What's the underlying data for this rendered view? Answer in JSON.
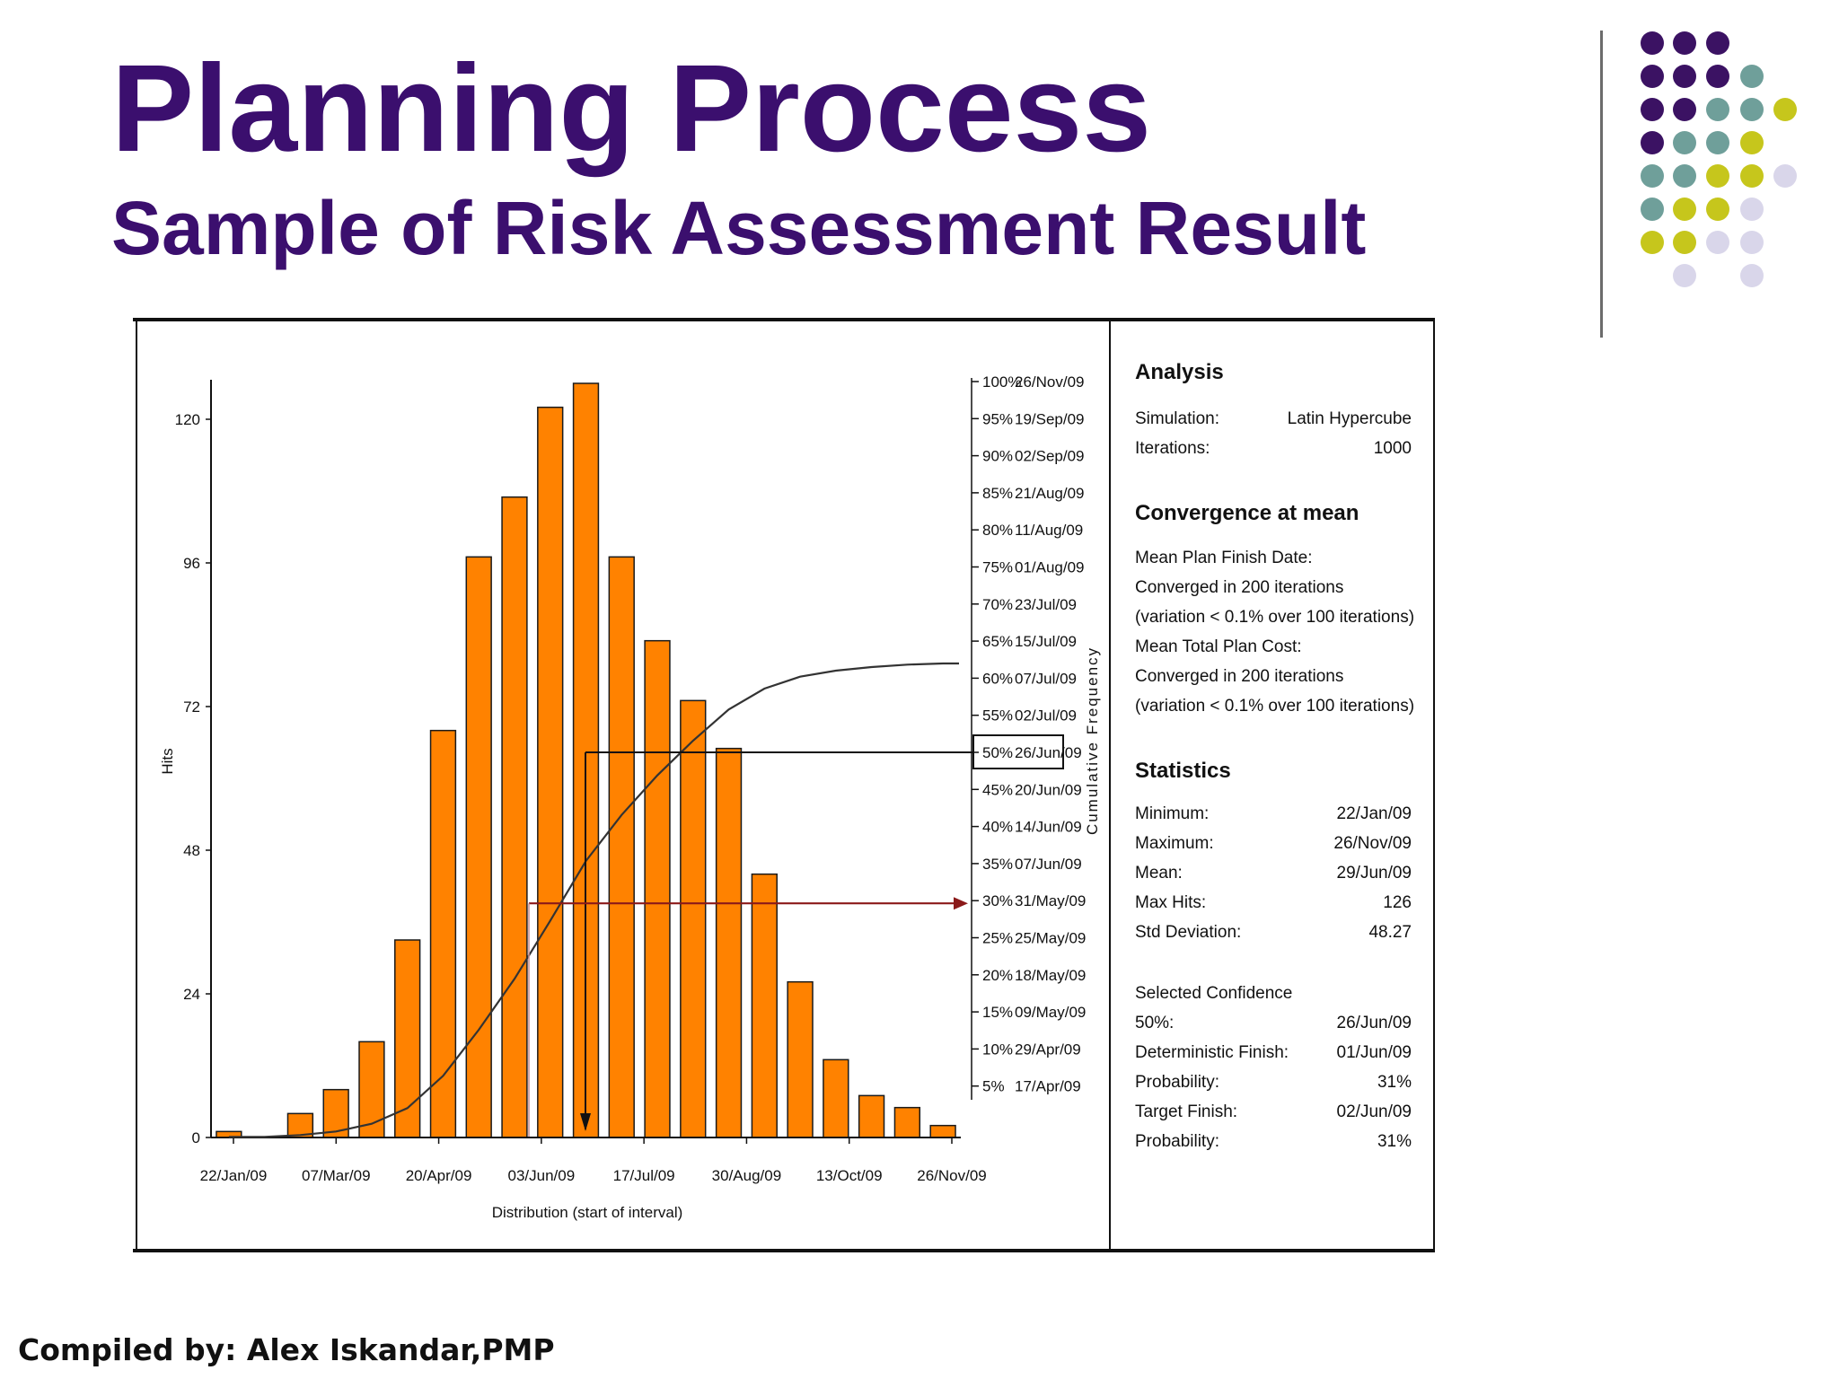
{
  "slide": {
    "title": "Planning Process",
    "subtitle": "Sample of Risk Assessment Result",
    "footer": "Compiled by: Alex Iskandar,PMP"
  },
  "theme": {
    "title_color": "#3b0f6e",
    "bar_color": "#ff8200",
    "marker_line_color": "#8b1a1a",
    "dot_colors": {
      "purple": "#3b1263",
      "teal": "#6f9f9a",
      "olive": "#c6c61c",
      "lavender": "#d9d6ea"
    }
  },
  "chart_data": {
    "type": "bar",
    "title": "",
    "xlabel": "Distribution (start of interval)",
    "ylabel": "Hits",
    "y2label": "Cumulative Frequency",
    "ylim": [
      0,
      126
    ],
    "yticks": [
      "0",
      "24",
      "48",
      "72",
      "96",
      "120"
    ],
    "x_tick_labels": [
      "22/Jan/09",
      "07/Mar/09",
      "20/Apr/09",
      "03/Jun/09",
      "17/Jul/09",
      "30/Aug/09",
      "13/Oct/09",
      "26/Nov/09"
    ],
    "values": [
      1,
      0,
      4,
      8,
      16,
      33,
      68,
      97,
      107,
      122,
      126,
      97,
      83,
      73,
      65,
      44,
      26,
      13,
      7,
      5,
      2
    ],
    "cumulative": {
      "name": "Cumulative Frequency",
      "values": [
        0.1,
        0.1,
        0.4,
        1.0,
        2.3,
        4.9,
        10.3,
        18.0,
        26.5,
        36.2,
        46.2,
        53.9,
        60.5,
        66.3,
        71.5,
        75.0,
        77.0,
        78.0,
        78.6,
        79.0,
        79.2
      ],
      "percent_axis": [
        {
          "pct": "100%",
          "date": "26/Nov/09"
        },
        {
          "pct": "95%",
          "date": "19/Sep/09"
        },
        {
          "pct": "90%",
          "date": "02/Sep/09"
        },
        {
          "pct": "85%",
          "date": "21/Aug/09"
        },
        {
          "pct": "80%",
          "date": "11/Aug/09"
        },
        {
          "pct": "75%",
          "date": "01/Aug/09"
        },
        {
          "pct": "70%",
          "date": "23/Jul/09"
        },
        {
          "pct": "65%",
          "date": "15/Jul/09"
        },
        {
          "pct": "60%",
          "date": "07/Jul/09"
        },
        {
          "pct": "55%",
          "date": "02/Jul/09"
        },
        {
          "pct": "50%",
          "date": "26/Jun/09"
        },
        {
          "pct": "45%",
          "date": "20/Jun/09"
        },
        {
          "pct": "40%",
          "date": "14/Jun/09"
        },
        {
          "pct": "35%",
          "date": "07/Jun/09"
        },
        {
          "pct": "30%",
          "date": "31/May/09"
        },
        {
          "pct": "25%",
          "date": "25/May/09"
        },
        {
          "pct": "20%",
          "date": "18/May/09"
        },
        {
          "pct": "15%",
          "date": "09/May/09"
        },
        {
          "pct": "10%",
          "date": "29/Apr/09"
        },
        {
          "pct": "5%",
          "date": "17/Apr/09"
        }
      ]
    },
    "highlight": {
      "selected_percent": 50,
      "deterministic_percent": 31
    },
    "legend": "none",
    "grid": false
  },
  "analysis_panel": {
    "analysis_heading": "Analysis",
    "simulation_label": "Simulation:",
    "simulation_value": "Latin Hypercube",
    "iterations_label": "Iterations:",
    "iterations_value": "1000",
    "convergence_heading": "Convergence at mean",
    "convergence_lines": [
      "Mean Plan Finish Date:",
      "Converged in 200 iterations",
      "(variation < 0.1% over 100 iterations)",
      "Mean Total Plan Cost:",
      "Converged in 200 iterations",
      "(variation < 0.1% over 100 iterations)"
    ],
    "statistics_heading": "Statistics",
    "statistics": [
      {
        "label": "Minimum:",
        "value": "22/Jan/09"
      },
      {
        "label": "Maximum:",
        "value": "26/Nov/09"
      },
      {
        "label": "Mean:",
        "value": "29/Jun/09"
      },
      {
        "label": "Max Hits:",
        "value": "126"
      },
      {
        "label": "Std Deviation:",
        "value": "48.27"
      }
    ],
    "confidence_heading": "Selected Confidence",
    "confidence": [
      {
        "label": "50%:",
        "value": "26/Jun/09"
      },
      {
        "label": "Deterministic Finish:",
        "value": "01/Jun/09"
      },
      {
        "label": "Probability:",
        "value": "31%"
      },
      {
        "label": "Target Finish:",
        "value": "02/Jun/09"
      },
      {
        "label": "Probability:",
        "value": "31%"
      }
    ]
  }
}
